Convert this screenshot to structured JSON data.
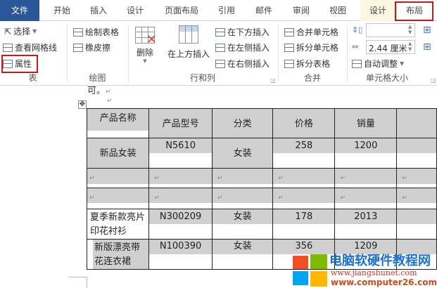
{
  "tabs": [
    {
      "label": "文件",
      "active": false
    },
    {
      "label": "开始"
    },
    {
      "label": "插入"
    },
    {
      "label": "设计"
    },
    {
      "label": "页面布局"
    },
    {
      "label": "引用"
    },
    {
      "label": "邮件"
    },
    {
      "label": "审阅"
    },
    {
      "label": "视图"
    },
    {
      "label": "设计"
    },
    {
      "label": "布局",
      "active": true
    }
  ],
  "ribbon": {
    "table_group": {
      "label": "表",
      "select": "选择",
      "gridlines": "查看网格线",
      "properties": "属性"
    },
    "draw_group": {
      "label": "绘图",
      "draw_table": "绘制表格",
      "eraser": "橡皮擦"
    },
    "rows_cols_group": {
      "label": "行和列",
      "delete": "删除",
      "insert_above": "在上方插入",
      "insert_below": "在下方插入",
      "insert_left": "在左侧插入",
      "insert_right": "在右侧插入"
    },
    "merge_group": {
      "label": "合并",
      "merge_cells": "合并单元格",
      "split_cells": "拆分单元格",
      "split_table": "拆分表格"
    },
    "cell_size_group": {
      "label": "单元格大小",
      "height_value": "",
      "width_value": "2.44 厘米",
      "autofit": "自动调整"
    }
  },
  "doc": {
    "prev_text": "可。",
    "mark": "↵"
  },
  "table": {
    "headers": [
      "产品名称",
      "产品型号",
      "分类",
      "价格",
      "销量"
    ],
    "rows": [
      [
        "新品女装",
        "N5610",
        "女装",
        "258",
        "1200"
      ],
      [
        "",
        "",
        "",
        "",
        ""
      ],
      [
        "",
        "",
        "",
        "",
        ""
      ],
      [
        "夏季新款亮片印花衬衫",
        "N300209",
        "女装",
        "178",
        "2013"
      ],
      [
        "新版漂亮带花连衣裙",
        "N100390",
        "女装",
        "356",
        "1209"
      ]
    ]
  },
  "watermark": {
    "title": "电脑软硬件教程网",
    "url1": "www.jiangshunet.com",
    "url2": "www.computer26.com"
  },
  "colors": {
    "file_tab": "#2b579a",
    "highlight": "#c8161d",
    "cell_shade": "#d0d0d0",
    "context_tab_bg": "#fdf6e0"
  }
}
